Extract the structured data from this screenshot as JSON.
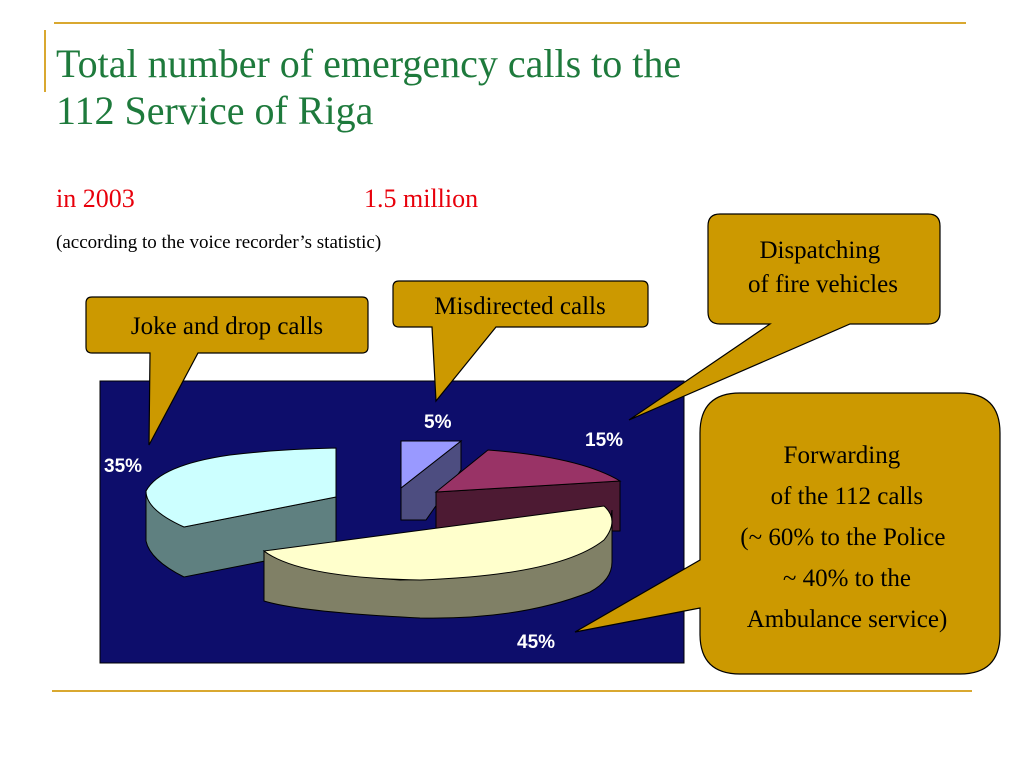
{
  "slide": {
    "title_line1": "Total number of emergency calls to the",
    "title_line2": "112 Service of Riga",
    "year_label": "in 2003",
    "total_label": "1.5 million",
    "note": "(according to the voice recorder’s statistic)"
  },
  "colors": {
    "title": "#1e7a3c",
    "subtitle": "#e8000b",
    "accent_rule": "#d9a830",
    "plot_bg": "#0d0d6b",
    "callout_fill": "#cc9900"
  },
  "chart_data": {
    "type": "pie",
    "style": "3d-exploded",
    "slices": [
      {
        "label": "Joke and drop calls",
        "value": 35,
        "value_label": "35%",
        "top_color": "#ccffff",
        "side_color": "#5f8080"
      },
      {
        "label": "Misdirected calls",
        "value": 5,
        "value_label": "5%",
        "top_color": "#9999ff",
        "side_color": "#4d4d80"
      },
      {
        "label": "Dispatching of fire vehicles",
        "value": 15,
        "value_label": "15%",
        "top_color": "#993366",
        "side_color": "#4d1a33"
      },
      {
        "label": "Forwarding of the 112 calls (~ 60% to the Police ~ 40% to the Ambulance service)",
        "value": 45,
        "value_label": "45%",
        "top_color": "#ffffcc",
        "side_color": "#808066"
      }
    ]
  },
  "callouts": {
    "joke": "Joke and drop calls",
    "misdirected": "Misdirected calls",
    "dispatching": [
      "Dispatching",
      "of fire vehicles"
    ],
    "forwarding": [
      "Forwarding",
      "of the 112 calls",
      "(~ 60% to the Police",
      "~ 40% to the",
      "Ambulance service)"
    ]
  }
}
